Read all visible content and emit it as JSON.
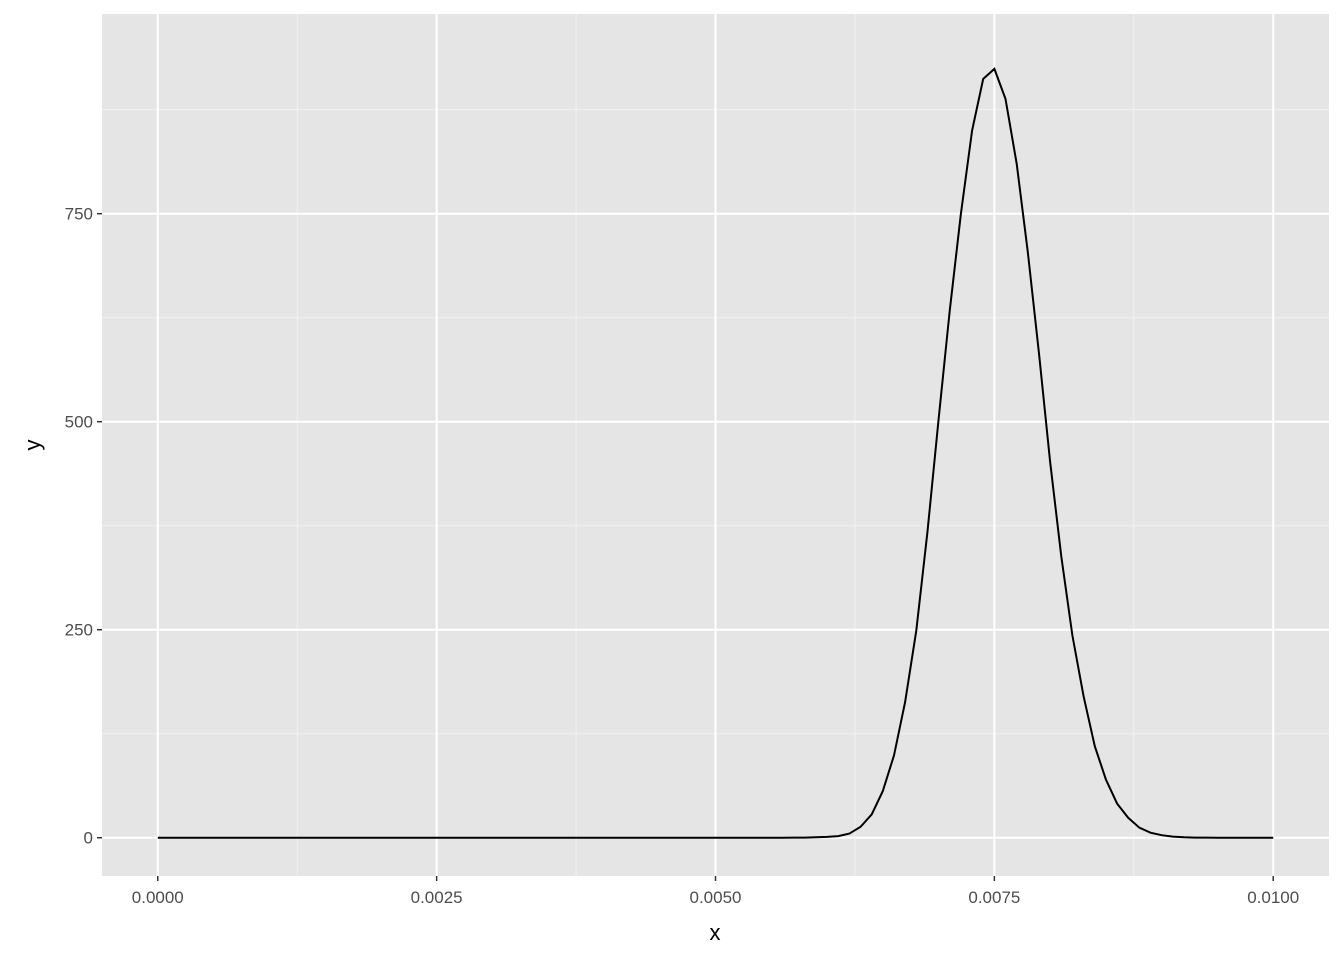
{
  "chart_data": {
    "type": "line",
    "title": "",
    "xlabel": "x",
    "ylabel": "y",
    "xlim": [
      -0.0005,
      0.0105
    ],
    "ylim": [
      -46,
      990
    ],
    "x_ticks": [
      "0.0000",
      "0.0025",
      "0.0050",
      "0.0075",
      "0.0100"
    ],
    "x_tick_values": [
      0,
      0.0025,
      0.005,
      0.0075,
      0.01
    ],
    "y_ticks": [
      "0",
      "250",
      "500",
      "750"
    ],
    "y_tick_values": [
      0,
      250,
      500,
      750
    ],
    "grid": true,
    "panel_background": "#e5e5e5",
    "line_color": "#000000",
    "series": [
      {
        "x": [
          0,
          0.0001,
          0.0002,
          0.0003,
          0.0004,
          0.0005,
          0.0006,
          0.0007,
          0.0008,
          0.0009,
          0.001,
          0.0011,
          0.0012,
          0.0013,
          0.0014,
          0.0015,
          0.0016,
          0.0017,
          0.0018,
          0.0019,
          0.002,
          0.0021,
          0.0022,
          0.0023,
          0.0024,
          0.0025,
          0.0026,
          0.0027,
          0.0028,
          0.0029,
          0.003,
          0.0031,
          0.0032,
          0.0033,
          0.0034,
          0.0035,
          0.0036,
          0.0037,
          0.0038,
          0.0039,
          0.004,
          0.0041,
          0.0042,
          0.0043,
          0.0044,
          0.0045,
          0.0046,
          0.0047,
          0.0048,
          0.0049,
          0.005,
          0.0051,
          0.0052,
          0.0053,
          0.0054,
          0.0055,
          0.0056,
          0.0057,
          0.0058,
          0.0059,
          0.006,
          0.0061,
          0.0062,
          0.0063,
          0.0064,
          0.0065,
          0.0066,
          0.0067,
          0.0068,
          0.0069,
          0.007,
          0.0071,
          0.0072,
          0.0073,
          0.0074,
          0.0075,
          0.0076,
          0.0077,
          0.0078,
          0.0079,
          0.008,
          0.0081,
          0.0082,
          0.0083,
          0.0084,
          0.0085,
          0.0086,
          0.0087,
          0.0088,
          0.0089,
          0.009,
          0.0091,
          0.0092,
          0.0093,
          0.0094,
          0.0095,
          0.0096,
          0.0097,
          0.0098,
          0.0099,
          0.01
        ],
        "y": [
          0,
          0,
          0,
          0,
          0,
          0,
          0,
          0,
          0,
          0,
          0,
          0,
          0,
          0,
          0,
          0,
          0,
          0,
          0,
          0,
          0,
          0,
          0,
          0,
          0,
          0,
          0,
          0,
          0,
          0,
          0,
          0,
          0,
          0,
          0,
          0,
          0,
          0,
          0,
          0,
          0,
          0,
          0,
          0,
          0,
          0,
          0,
          0,
          0,
          0,
          0,
          0,
          0,
          0,
          0,
          0,
          0,
          0.1,
          0.2,
          0.5,
          1,
          2,
          5,
          13,
          28,
          56,
          99,
          163,
          249,
          367,
          503,
          633,
          750,
          850,
          912,
          924,
          888,
          810,
          704,
          582,
          452,
          338,
          243,
          170,
          110,
          70,
          41,
          24,
          12,
          6,
          3,
          1.3,
          0.5,
          0.2,
          0.1,
          0,
          0,
          0,
          0,
          0,
          0
        ]
      }
    ]
  }
}
